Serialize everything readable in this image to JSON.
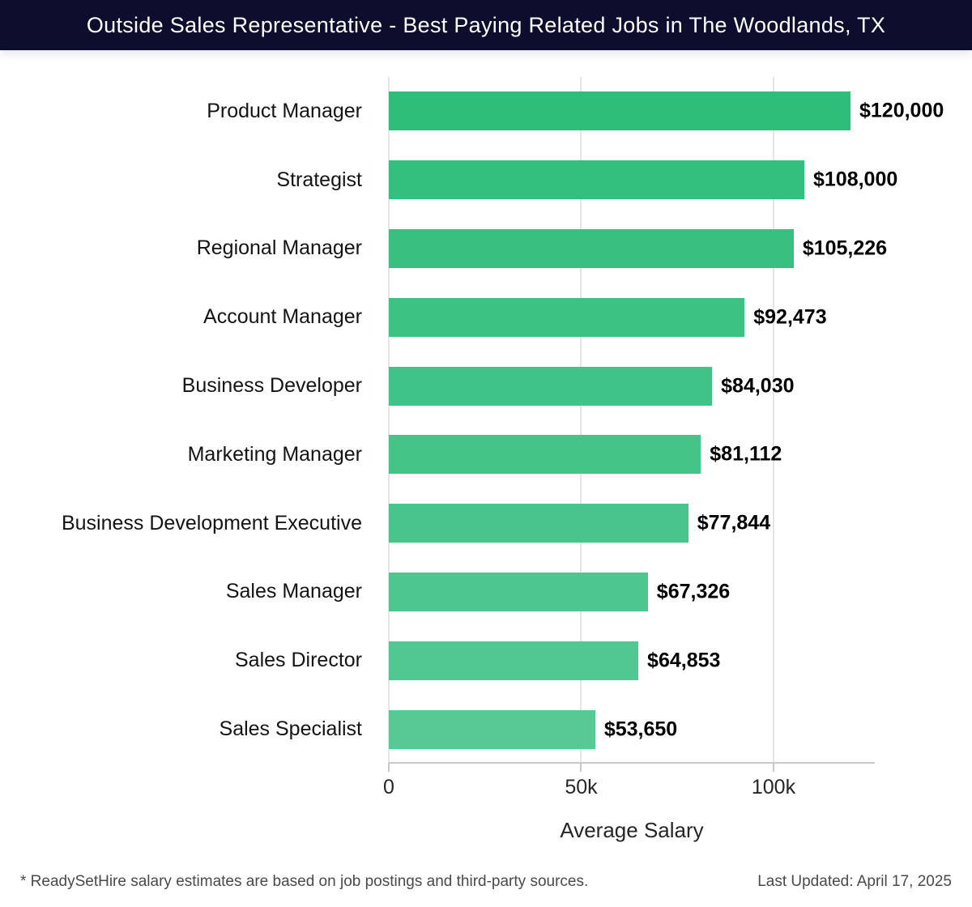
{
  "header": {
    "title": "Outside Sales Representative - Best Paying Related Jobs in The Woodlands, TX",
    "bg_color": "#0d0d2e",
    "text_color": "#ffffff"
  },
  "chart_data": {
    "type": "bar",
    "orientation": "horizontal",
    "title": "Outside Sales Representative - Best Paying Related Jobs in The Woodlands, TX",
    "categories": [
      "Product Manager",
      "Strategist",
      "Regional Manager",
      "Account Manager",
      "Business Developer",
      "Marketing Manager",
      "Business Development Executive",
      "Sales Manager",
      "Sales Director",
      "Sales Specialist"
    ],
    "values": [
      120000,
      108000,
      105226,
      92473,
      84030,
      81112,
      77844,
      67326,
      64853,
      53650
    ],
    "value_labels": [
      "$120,000",
      "$108,000",
      "$105,226",
      "$92,473",
      "$84,030",
      "$81,112",
      "$77,844",
      "$67,326",
      "$64,853",
      "$53,650"
    ],
    "xlabel": "Average Salary",
    "ylabel": "",
    "x_ticks": [
      "0",
      "50k",
      "100k"
    ],
    "x_tick_values": [
      0,
      50000,
      100000
    ],
    "xlim": [
      0,
      126316
    ],
    "grid": true,
    "legend": "none",
    "bar_color_start": "#2ebe7a",
    "bar_color_end": "#57c994"
  },
  "footer": {
    "note": "* ReadySetHire salary estimates are based on job postings and third-party sources.",
    "last_updated": "Last Updated: April 17, 2025"
  }
}
